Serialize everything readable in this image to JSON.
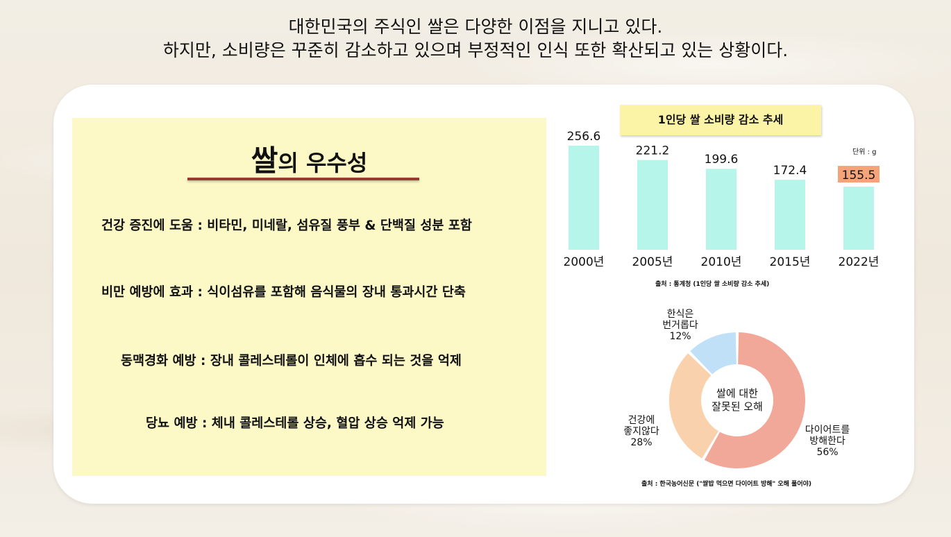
{
  "header": {
    "line1": "대한민국의 주식인 쌀은 다양한 이점을 지니고 있다.",
    "line2": "하지만, 소비량은 꾸준히 감소하고 있으며 부정적인 인식 또한 확산되고 있는 상황이다."
  },
  "panel": {
    "title_big": "쌀",
    "title_small": "의 우수성",
    "benefits": [
      "건강 증진에 도움 : 비타민, 미네랄, 섬유질 풍부 & 단백질 성분 포함",
      "비만 예방에 효과 :  식이섬유를 포함해 음식물의 장내 통과시간 단축",
      "동맥경화 예방 : 장내 콜레스테롤이 인체에 흡수 되는 것을 억제",
      "당뇨 예방 : 체내 콜레스테롤 상승, 혈압 상승 억제 가능"
    ]
  },
  "colors": {
    "bar": "#b5f5ea",
    "bar_highlight_label_bg": "#f5a47a",
    "donut": [
      "#f2a898",
      "#f9d2ad",
      "#bfe0f6"
    ]
  },
  "chart_data": [
    {
      "type": "bar",
      "title": "1인당 쌀 소비량 감소 추세",
      "unit": "단위 : g",
      "categories": [
        "2000년",
        "2005년",
        "2010년",
        "2015년",
        "2022년"
      ],
      "values": [
        256.6,
        221.2,
        199.6,
        172.4,
        155.5
      ],
      "value_labels": [
        "256.6",
        "221.2",
        "199.6",
        "172.4",
        "155.5"
      ],
      "highlight": "2022년",
      "source": "출처 : 통계청 (1인당 쌀 소비량 감소 추세)"
    },
    {
      "type": "pie",
      "center_label": [
        "쌀에 대한",
        "잘못된 오해"
      ],
      "slices": [
        {
          "label": [
            "다이어트를",
            "방해한다"
          ],
          "pct_text": "56%",
          "value": 56
        },
        {
          "label": [
            "건강에",
            "좋지않다"
          ],
          "pct_text": "28%",
          "value": 28
        },
        {
          "label": [
            "한식은",
            "번거롭다"
          ],
          "pct_text": "12%",
          "value": 12
        }
      ],
      "source": "출처 : 한국농어신문 (\"쌀밥 먹으면 다이어트 방해\" 오해 풀어야)"
    }
  ]
}
